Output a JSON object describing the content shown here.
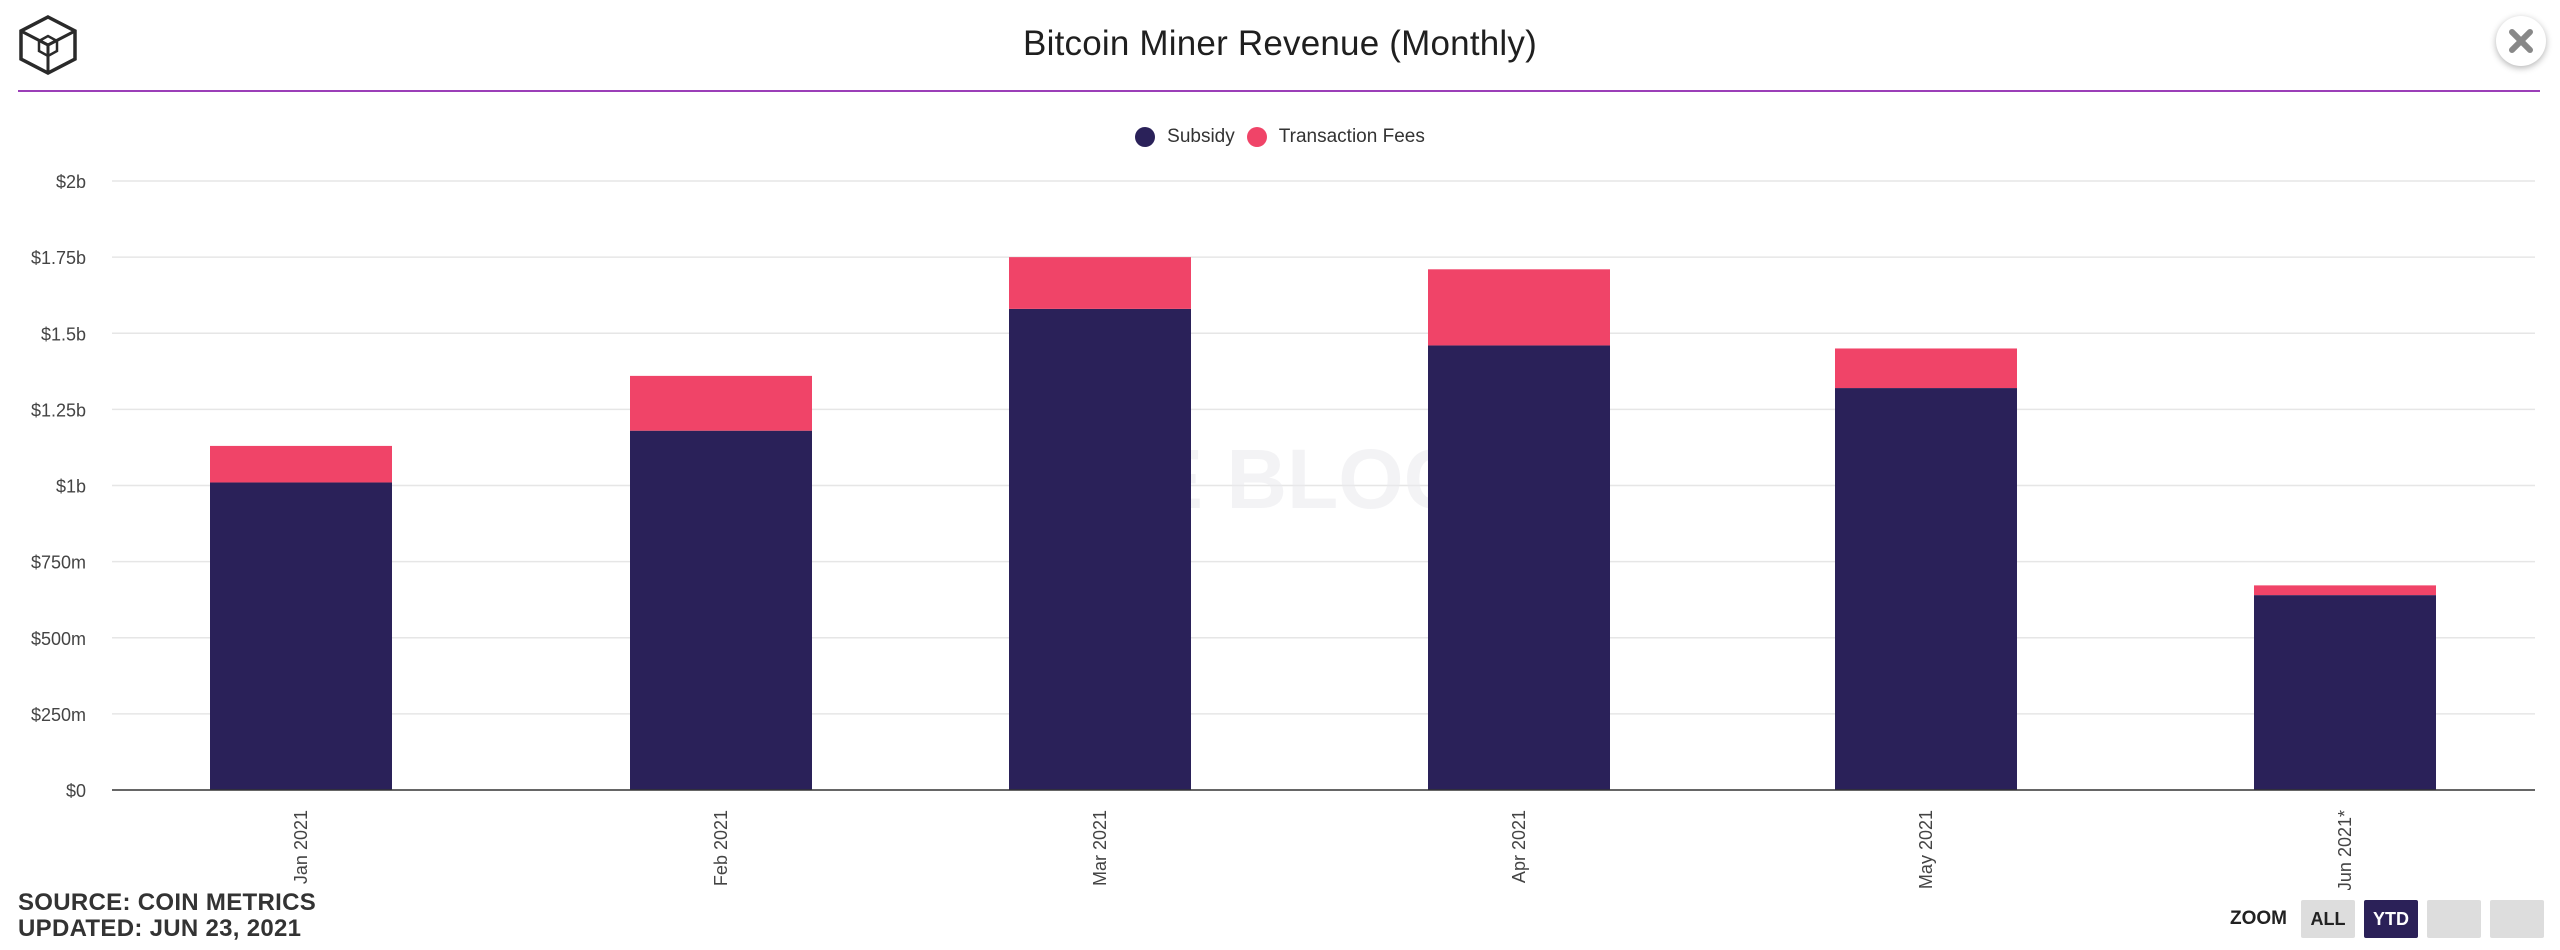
{
  "header": {
    "title": "Bitcoin Miner Revenue (Monthly)"
  },
  "icons": {
    "logo": "cube-logo-icon",
    "close": "close-icon"
  },
  "watermark": "THE BLOCK",
  "colors": {
    "subsidy": "#2a2159",
    "transaction_fees": "#f04468",
    "header_rule": "#9b3fb8",
    "zoom_active": "#2b2158"
  },
  "chart_data": {
    "type": "bar",
    "stacked": true,
    "categories": [
      "Jan 2021",
      "Feb 2021",
      "Mar 2021",
      "Apr 2021",
      "May 2021",
      "Jun 2021*"
    ],
    "series": [
      {
        "name": "Subsidy",
        "color": "#2a2159",
        "values": [
          1010000000,
          1180000000,
          1580000000,
          1460000000,
          1320000000,
          640000000
        ]
      },
      {
        "name": "Transaction Fees",
        "color": "#f04468",
        "values": [
          120000000,
          180000000,
          170000000,
          250000000,
          130000000,
          32000000
        ]
      }
    ],
    "ylim": [
      0,
      2000000000
    ],
    "yticks": [
      {
        "value": 0,
        "label": "$0"
      },
      {
        "value": 250000000,
        "label": "$250m"
      },
      {
        "value": 500000000,
        "label": "$500m"
      },
      {
        "value": 750000000,
        "label": "$750m"
      },
      {
        "value": 1000000000,
        "label": "$1b"
      },
      {
        "value": 1250000000,
        "label": "$1.25b"
      },
      {
        "value": 1500000000,
        "label": "$1.5b"
      },
      {
        "value": 1750000000,
        "label": "$1.75b"
      },
      {
        "value": 2000000000,
        "label": "$2b"
      }
    ],
    "grid": true,
    "legend_position": "top-center",
    "xlabel": "",
    "ylabel": ""
  },
  "footer": {
    "source": "SOURCE: COIN METRICS",
    "updated": "UPDATED: JUN 23, 2021"
  },
  "zoom": {
    "label": "ZOOM",
    "buttons": [
      {
        "label": "ALL",
        "active": false
      },
      {
        "label": "YTD",
        "active": true
      },
      {
        "label": "",
        "active": false
      },
      {
        "label": "",
        "active": false
      }
    ]
  }
}
